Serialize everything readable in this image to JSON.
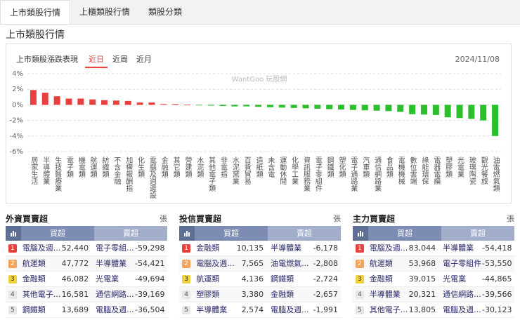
{
  "tabs": [
    "上市類股行情",
    "上櫃類股行情",
    "類股分類"
  ],
  "section_title": "上市類股行情",
  "chart_panel": {
    "title": "上市類股漲跌表現",
    "periods": [
      "近日",
      "近周",
      "近月"
    ],
    "date": "2024/11/08",
    "watermark": "WantGoo 玩股網"
  },
  "chart_data": {
    "type": "bar",
    "categories": [
      "居家生活",
      "半導體業",
      "生技醫療業",
      "電子類",
      "機電類",
      "航運類",
      "紡織類",
      "不含金融",
      "加權報酬指",
      "化生類",
      "電腦及週邊設",
      "金融類",
      "其它類",
      "營建類",
      "水泥類",
      "其他電子類",
      "非電指",
      "水泥窯業",
      "百貨貿易",
      "造紙類",
      "未含電",
      "運動休閒",
      "化學工業",
      "資訊服務業",
      "電子零組件",
      "鋼鐵類",
      "塑化類",
      "電子通路業",
      "汽車類",
      "通信網路業",
      "食品類",
      "電機機械",
      "數位雲端",
      "綠能環保",
      "電器電纜",
      "塑膠類",
      "光電業",
      "玻璃陶瓷",
      "觀光餐旅",
      "油電燃氣類"
    ],
    "values": [
      1.9,
      1.55,
      1.1,
      0.8,
      0.8,
      0.7,
      0.6,
      0.55,
      0.5,
      0.3,
      0.3,
      0.1,
      0.1,
      0.02,
      -0.01,
      -0.1,
      -0.15,
      -0.2,
      -0.2,
      -0.25,
      -0.3,
      -0.35,
      -0.4,
      -0.45,
      -0.5,
      -0.55,
      -0.6,
      -0.65,
      -0.7,
      -0.75,
      -0.8,
      -0.9,
      -1.2,
      -1.25,
      -1.3,
      -1.6,
      -1.7,
      -1.8,
      -2.0,
      -4.0
    ],
    "positive_color": "#e8403f",
    "negative_color": "#2bbf2b",
    "ylim": [
      -6,
      4
    ],
    "yticks": [
      {
        "value": 4,
        "label": "4%"
      },
      {
        "value": 2,
        "label": "2%"
      },
      {
        "value": 0,
        "label": "0%"
      },
      {
        "value": -2,
        "label": "-2%"
      },
      {
        "value": -4,
        "label": "-4%"
      },
      {
        "value": -6,
        "label": "-6%"
      }
    ],
    "grid": true
  },
  "tables": [
    {
      "title": "外資買賣超",
      "unit": "張",
      "headers": [
        "買超",
        "賣超"
      ],
      "rows": [
        [
          "1",
          "電腦及週...",
          "52,440",
          "電子零組...",
          "-59,298"
        ],
        [
          "2",
          "航運類",
          "47,772",
          "半導體業",
          "-54,421"
        ],
        [
          "3",
          "金融類",
          "46,082",
          "光電業",
          "-49,694"
        ],
        [
          "4",
          "其他電子...",
          "16,581",
          "通信網路...",
          "-39,169"
        ],
        [
          "5",
          "鋼鐵類",
          "13,689",
          "電腦及週...",
          "-36,504"
        ]
      ]
    },
    {
      "title": "投信買賣超",
      "unit": "張",
      "headers": [
        "買超",
        "賣超"
      ],
      "rows": [
        [
          "1",
          "金融類",
          "10,135",
          "半導體業",
          "-6,178"
        ],
        [
          "2",
          "電腦及週...",
          "7,565",
          "油電燃氣...",
          "-2,808"
        ],
        [
          "3",
          "航運類",
          "4,136",
          "鋼鐵類",
          "-2,724"
        ],
        [
          "4",
          "塑膠類",
          "3,380",
          "金融類",
          "-2,657"
        ],
        [
          "5",
          "半導體業",
          "2,574",
          "電腦及週...",
          "-1,991"
        ]
      ]
    },
    {
      "title": "主力買賣超",
      "unit": "張",
      "headers": [
        "買超",
        "賣超"
      ],
      "rows": [
        [
          "1",
          "電腦及週...",
          "83,044",
          "半導體業",
          "-54,418"
        ],
        [
          "2",
          "航運類",
          "53,968",
          "電子零組件",
          "-53,550"
        ],
        [
          "3",
          "金融類",
          "39,015",
          "光電業",
          "-44,865"
        ],
        [
          "4",
          "半導體業",
          "20,321",
          "通信網路...",
          "-39,566"
        ],
        [
          "5",
          "其他電子...",
          "13,805",
          "電腦及週...",
          "-30,123"
        ]
      ]
    }
  ]
}
